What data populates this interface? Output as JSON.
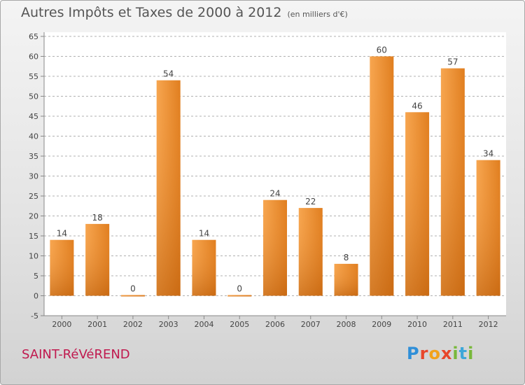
{
  "header": {
    "title": "Autres Impôts et Taxes de 2000 à 2012",
    "subtitle": "(en milliers d'€)"
  },
  "footer": {
    "commune": "SAINT-RéVéREND",
    "brand": "Proxiti"
  },
  "colors": {
    "bar_light": "#f7a24e",
    "bar_dark": "#d06a10",
    "axis": "#888888",
    "grid": "#b0b0b0"
  },
  "chart_data": {
    "type": "bar",
    "title": "Autres Impôts et Taxes de 2000 à 2012",
    "subtitle": "(en milliers d'€)",
    "categories": [
      "2000",
      "2001",
      "2002",
      "2003",
      "2004",
      "2005",
      "2006",
      "2007",
      "2008",
      "2009",
      "2010",
      "2011",
      "2012"
    ],
    "values": [
      14,
      18,
      0,
      54,
      14,
      0,
      24,
      22,
      8,
      60,
      46,
      57,
      34
    ],
    "data_labels": [
      "14",
      "18",
      "0",
      "54",
      "14",
      "0",
      "24",
      "22",
      "8",
      "60",
      "46",
      "57",
      "34"
    ],
    "ylim": [
      -5,
      65
    ],
    "yticks": [
      -5,
      0,
      5,
      10,
      15,
      20,
      25,
      30,
      35,
      40,
      45,
      50,
      55,
      60,
      65
    ],
    "grid": true,
    "legend": "none"
  }
}
